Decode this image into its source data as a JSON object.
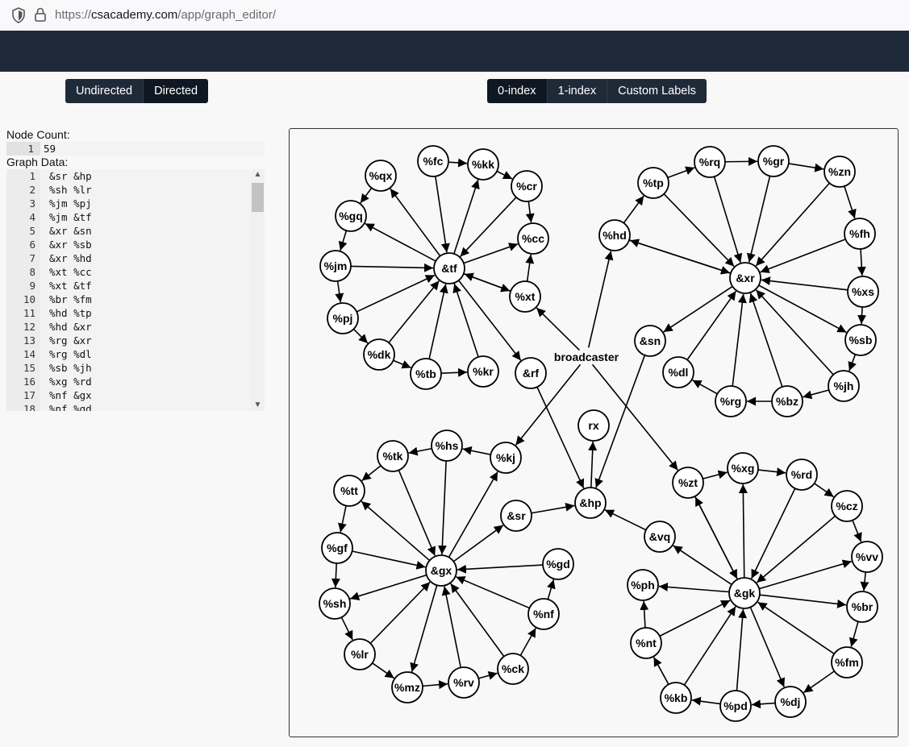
{
  "browser": {
    "url_prefix": "https://",
    "url_host": "csacademy.com",
    "url_path": "/app/graph_editor/"
  },
  "direction_toggle": {
    "options": [
      "Undirected",
      "Directed"
    ],
    "active": "Directed"
  },
  "index_toggle": {
    "options": [
      "0-index",
      "1-index",
      "Custom Labels"
    ],
    "active": "0-index"
  },
  "node_count": {
    "label": "Node Count:",
    "line_number": "1",
    "value": "59"
  },
  "graph_data": {
    "label": "Graph Data:",
    "lines": [
      [
        "1",
        "&sr &hp"
      ],
      [
        "2",
        "%sh %lr"
      ],
      [
        "3",
        "%jm %pj"
      ],
      [
        "4",
        "%jm &tf"
      ],
      [
        "5",
        "&xr &sn"
      ],
      [
        "6",
        "&xr %sb"
      ],
      [
        "7",
        "&xr %hd"
      ],
      [
        "8",
        "%xt %cc"
      ],
      [
        "9",
        "%xt &tf"
      ],
      [
        "10",
        "%br %fm"
      ],
      [
        "11",
        "%hd %tp"
      ],
      [
        "12",
        "%hd &xr"
      ],
      [
        "13",
        "%rg &xr"
      ],
      [
        "14",
        "%rg %dl"
      ],
      [
        "15",
        "%sb %jh"
      ],
      [
        "16",
        "%xg %rd"
      ],
      [
        "17",
        "%nf &gx"
      ],
      [
        "18",
        "%nf %gd"
      ]
    ]
  },
  "graph": {
    "nodes": [
      {
        "id": "broadcaster",
        "label": "broadcaster",
        "bare": true
      },
      {
        "id": "rx",
        "label": "rx"
      },
      {
        "id": "&tf",
        "label": "&tf"
      },
      {
        "id": "%qx",
        "label": "%qx"
      },
      {
        "id": "%fc",
        "label": "%fc"
      },
      {
        "id": "%kk",
        "label": "%kk"
      },
      {
        "id": "%cr",
        "label": "%cr"
      },
      {
        "id": "%cc",
        "label": "%cc"
      },
      {
        "id": "%xt",
        "label": "%xt"
      },
      {
        "id": "%gq",
        "label": "%gq"
      },
      {
        "id": "%jm",
        "label": "%jm"
      },
      {
        "id": "%pj",
        "label": "%pj"
      },
      {
        "id": "%dk",
        "label": "%dk"
      },
      {
        "id": "%tb",
        "label": "%tb"
      },
      {
        "id": "%kr",
        "label": "%kr"
      },
      {
        "id": "&rf",
        "label": "&rf"
      },
      {
        "id": "&xr",
        "label": "&xr"
      },
      {
        "id": "%tp",
        "label": "%tp"
      },
      {
        "id": "%rq",
        "label": "%rq"
      },
      {
        "id": "%gr",
        "label": "%gr"
      },
      {
        "id": "%zn",
        "label": "%zn"
      },
      {
        "id": "%fh",
        "label": "%fh"
      },
      {
        "id": "%xs",
        "label": "%xs"
      },
      {
        "id": "%sb",
        "label": "%sb"
      },
      {
        "id": "%jh",
        "label": "%jh"
      },
      {
        "id": "%bz",
        "label": "%bz"
      },
      {
        "id": "%rg",
        "label": "%rg"
      },
      {
        "id": "%dl",
        "label": "%dl"
      },
      {
        "id": "%hd",
        "label": "%hd"
      },
      {
        "id": "&sn",
        "label": "&sn"
      },
      {
        "id": "&gx",
        "label": "&gx"
      },
      {
        "id": "%tk",
        "label": "%tk"
      },
      {
        "id": "%hs",
        "label": "%hs"
      },
      {
        "id": "%kj",
        "label": "%kj"
      },
      {
        "id": "%tt",
        "label": "%tt"
      },
      {
        "id": "%gf",
        "label": "%gf"
      },
      {
        "id": "%sh",
        "label": "%sh"
      },
      {
        "id": "%lr",
        "label": "%lr"
      },
      {
        "id": "%mz",
        "label": "%mz"
      },
      {
        "id": "%rv",
        "label": "%rv"
      },
      {
        "id": "%ck",
        "label": "%ck"
      },
      {
        "id": "%nf",
        "label": "%nf"
      },
      {
        "id": "%gd",
        "label": "%gd"
      },
      {
        "id": "&sr",
        "label": "&sr"
      },
      {
        "id": "&hp",
        "label": "&hp"
      },
      {
        "id": "&gk",
        "label": "&gk"
      },
      {
        "id": "%zt",
        "label": "%zt"
      },
      {
        "id": "%xg",
        "label": "%xg"
      },
      {
        "id": "%rd",
        "label": "%rd"
      },
      {
        "id": "%cz",
        "label": "%cz"
      },
      {
        "id": "%vv",
        "label": "%vv"
      },
      {
        "id": "%br",
        "label": "%br"
      },
      {
        "id": "%fm",
        "label": "%fm"
      },
      {
        "id": "%dj",
        "label": "%dj"
      },
      {
        "id": "%pd",
        "label": "%pd"
      },
      {
        "id": "%kb",
        "label": "%kb"
      },
      {
        "id": "%nt",
        "label": "%nt"
      },
      {
        "id": "%ph",
        "label": "%ph"
      },
      {
        "id": "&vq",
        "label": "&vq"
      }
    ],
    "edges": [
      [
        "broadcaster",
        "%xt"
      ],
      [
        "broadcaster",
        "%hd"
      ],
      [
        "broadcaster",
        "%kj"
      ],
      [
        "broadcaster",
        "%zt"
      ],
      [
        "&tf",
        "%qx"
      ],
      [
        "%fc",
        "&tf"
      ],
      [
        "&tf",
        "%kk"
      ],
      [
        "%cr",
        "&tf"
      ],
      [
        "&tf",
        "%cc"
      ],
      [
        "%xt",
        "&tf"
      ],
      [
        "&tf",
        "%xt"
      ],
      [
        "&tf",
        "%gq"
      ],
      [
        "%jm",
        "&tf"
      ],
      [
        "%pj",
        "&tf"
      ],
      [
        "%dk",
        "&tf"
      ],
      [
        "%tb",
        "&tf"
      ],
      [
        "%kr",
        "&tf"
      ],
      [
        "&tf",
        "&rf"
      ],
      [
        "%qx",
        "%gq"
      ],
      [
        "%fc",
        "%kk"
      ],
      [
        "%kk",
        "%cr"
      ],
      [
        "%cr",
        "%cc"
      ],
      [
        "%xt",
        "%cc"
      ],
      [
        "%gq",
        "%jm"
      ],
      [
        "%jm",
        "%pj"
      ],
      [
        "%pj",
        "%dk"
      ],
      [
        "%dk",
        "%tb"
      ],
      [
        "%tb",
        "%kr"
      ],
      [
        "%hd",
        "%tp"
      ],
      [
        "%hd",
        "&xr"
      ],
      [
        "&xr",
        "%hd"
      ],
      [
        "%tp",
        "%rq"
      ],
      [
        "%rq",
        "%gr"
      ],
      [
        "%gr",
        "%zn"
      ],
      [
        "%zn",
        "%fh"
      ],
      [
        "%fh",
        "%xs"
      ],
      [
        "%xs",
        "%sb"
      ],
      [
        "%sb",
        "%jh"
      ],
      [
        "%jh",
        "%bz"
      ],
      [
        "%bz",
        "%rg"
      ],
      [
        "%rg",
        "%dl"
      ],
      [
        "%tp",
        "&xr"
      ],
      [
        "%rq",
        "&xr"
      ],
      [
        "%gr",
        "&xr"
      ],
      [
        "%zn",
        "&xr"
      ],
      [
        "%fh",
        "&xr"
      ],
      [
        "%xs",
        "&xr"
      ],
      [
        "&xr",
        "%sb"
      ],
      [
        "%jh",
        "&xr"
      ],
      [
        "%bz",
        "&xr"
      ],
      [
        "%rg",
        "&xr"
      ],
      [
        "%dl",
        "&xr"
      ],
      [
        "&xr",
        "&sn"
      ],
      [
        "%hs",
        "%tk"
      ],
      [
        "%tk",
        "%tt"
      ],
      [
        "%tt",
        "%gf"
      ],
      [
        "%gf",
        "%sh"
      ],
      [
        "%sh",
        "%lr"
      ],
      [
        "%lr",
        "%mz"
      ],
      [
        "%mz",
        "%rv"
      ],
      [
        "%rv",
        "%ck"
      ],
      [
        "%ck",
        "%nf"
      ],
      [
        "%nf",
        "%gd"
      ],
      [
        "%kj",
        "%hs"
      ],
      [
        "%tk",
        "&gx"
      ],
      [
        "%hs",
        "&gx"
      ],
      [
        "&gx",
        "%kj"
      ],
      [
        "&gx",
        "%tt"
      ],
      [
        "%gf",
        "&gx"
      ],
      [
        "&gx",
        "%sh"
      ],
      [
        "%lr",
        "&gx"
      ],
      [
        "&gx",
        "%mz"
      ],
      [
        "%rv",
        "&gx"
      ],
      [
        "%ck",
        "&gx"
      ],
      [
        "%nf",
        "&gx"
      ],
      [
        "%gd",
        "&gx"
      ],
      [
        "&gx",
        "&sr"
      ],
      [
        "&sr",
        "&hp"
      ],
      [
        "%zt",
        "%xg"
      ],
      [
        "%xg",
        "%rd"
      ],
      [
        "%rd",
        "%cz"
      ],
      [
        "%cz",
        "%vv"
      ],
      [
        "%vv",
        "%br"
      ],
      [
        "%br",
        "%fm"
      ],
      [
        "%fm",
        "%dj"
      ],
      [
        "%dj",
        "%pd"
      ],
      [
        "%pd",
        "%kb"
      ],
      [
        "%kb",
        "%nt"
      ],
      [
        "%nt",
        "%ph"
      ],
      [
        "%zt",
        "&gk"
      ],
      [
        "&gk",
        "%zt"
      ],
      [
        "&gk",
        "%xg"
      ],
      [
        "%rd",
        "&gk"
      ],
      [
        "%cz",
        "&gk"
      ],
      [
        "&gk",
        "%vv"
      ],
      [
        "&gk",
        "%br"
      ],
      [
        "%fm",
        "&gk"
      ],
      [
        "&gk",
        "%dj"
      ],
      [
        "%pd",
        "&gk"
      ],
      [
        "%kb",
        "&gk"
      ],
      [
        "%nt",
        "&gk"
      ],
      [
        "&gk",
        "%ph"
      ],
      [
        "&gk",
        "&vq"
      ],
      [
        "&vq",
        "&hp"
      ],
      [
        "&rf",
        "&hp"
      ],
      [
        "&sn",
        "&hp"
      ],
      [
        "&hp",
        "rx"
      ]
    ]
  }
}
